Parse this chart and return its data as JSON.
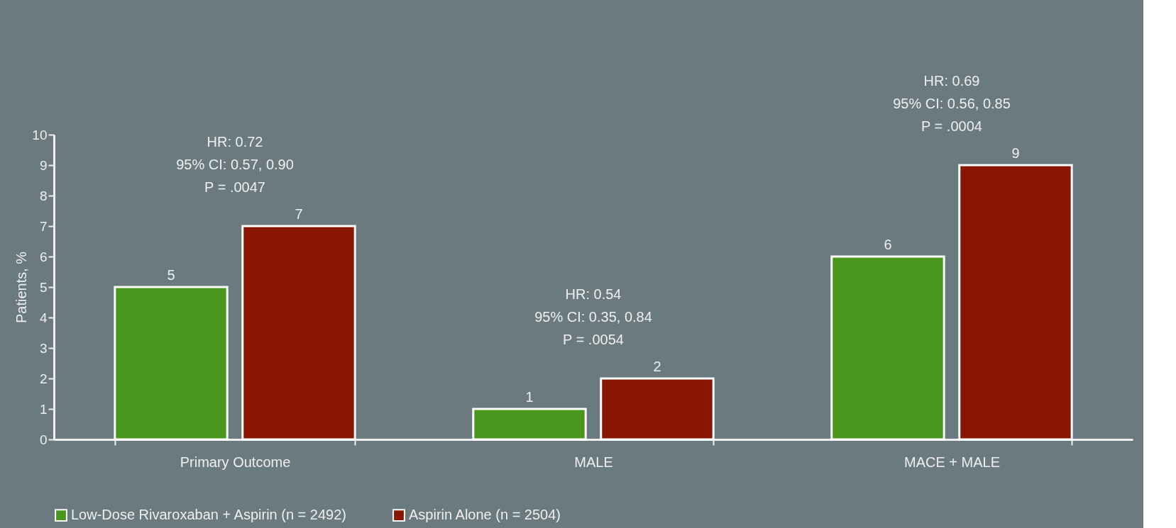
{
  "chart_data": {
    "type": "bar",
    "ylabel": "Patients, %",
    "categories": [
      "Primary Outcome",
      "MALE",
      "MACE + MALE"
    ],
    "series": [
      {
        "name": "Low-Dose Rivaroxaban + Aspirin (n = 2492)",
        "color": "#4b961c",
        "values": [
          5,
          1,
          6
        ]
      },
      {
        "name": "Aspirin Alone (n = 2504)",
        "color": "#8a1500",
        "values": [
          7,
          2,
          9
        ]
      }
    ],
    "ylim": [
      0,
      10
    ],
    "yticks": [
      0,
      1,
      2,
      3,
      4,
      5,
      6,
      7,
      8,
      9,
      10
    ],
    "grid": false,
    "legend": "bottom",
    "data_labels": true,
    "annotations": [
      "HR: 0.72\n95% CI: 0.57, 0.90\nP = .0047",
      "HR: 0.54\n95% CI: 0.35, 0.84\nP = .0054",
      "HR: 0.69\n95% CI: 0.56, 0.85\nP = .0004"
    ]
  }
}
